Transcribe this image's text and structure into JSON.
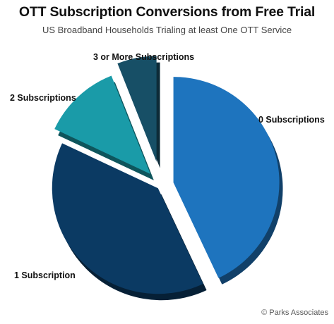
{
  "title": "OTT Subscription Conversions from Free Trial",
  "subtitle": "US Broadband Households Trialing at least One OTT Service",
  "copyright": "© Parks Associates",
  "chart_data": {
    "type": "pie",
    "title": "OTT Subscription Conversions from Free Trial",
    "subtitle": "US Broadband Households Trialing at least One OTT Service",
    "exploded": true,
    "style": "3d",
    "slices": [
      {
        "label": "0 Subscriptions",
        "value": 43,
        "color": "#1E74BE"
      },
      {
        "label": "1 Subscription",
        "value": 39,
        "color": "#0B3A63"
      },
      {
        "label": "2 Subscriptions",
        "value": 12,
        "color": "#1A9BA8"
      },
      {
        "label": "3 or More Subscriptions",
        "value": 6,
        "color": "#174F66"
      }
    ]
  }
}
